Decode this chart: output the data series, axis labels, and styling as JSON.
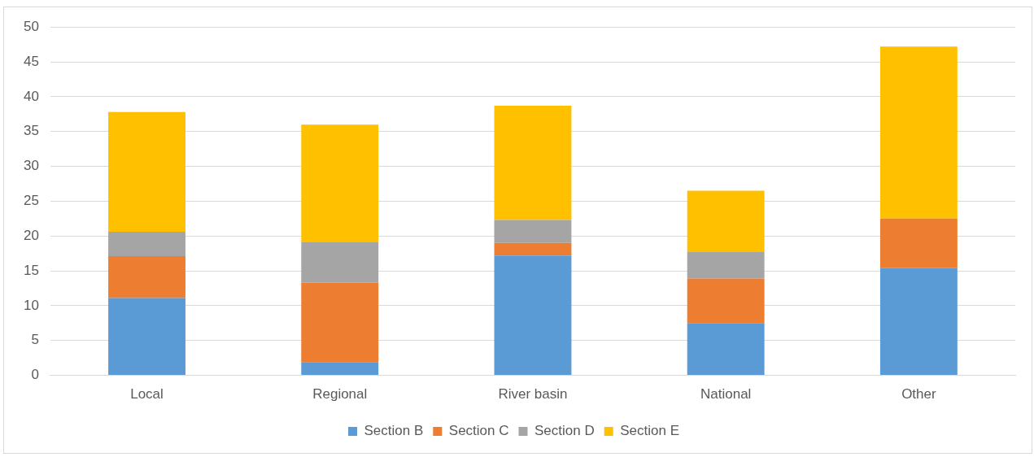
{
  "chart_data": {
    "type": "bar",
    "stacked": true,
    "categories": [
      "Local",
      "Regional",
      "River basin",
      "National",
      "Other"
    ],
    "series": [
      {
        "name": "Section B",
        "color": "#5b9bd5",
        "values": [
          11.1,
          1.9,
          17.2,
          7.5,
          15.4
        ]
      },
      {
        "name": "Section C",
        "color": "#ed7d31",
        "values": [
          6.0,
          11.4,
          1.8,
          6.4,
          7.1
        ]
      },
      {
        "name": "Section D",
        "color": "#a5a5a5",
        "values": [
          3.5,
          5.8,
          3.3,
          3.8,
          0
        ]
      },
      {
        "name": "Section E",
        "color": "#ffc000",
        "values": [
          17.2,
          16.9,
          16.4,
          8.8,
          24.7
        ]
      }
    ],
    "ylim": [
      0,
      50
    ],
    "yticks": [
      0,
      5,
      10,
      15,
      20,
      25,
      30,
      35,
      40,
      45,
      50
    ],
    "grid": "y",
    "legend": "bottom"
  }
}
